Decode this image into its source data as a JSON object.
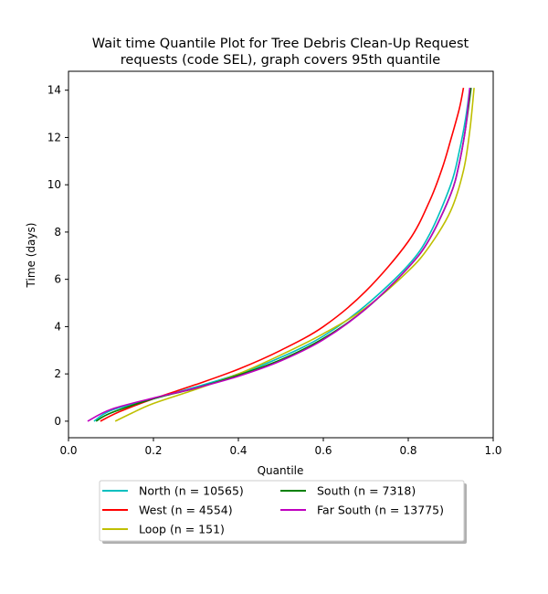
{
  "chart_data": {
    "type": "line",
    "title_line1": "Wait time Quantile Plot for Tree Debris Clean-Up Request",
    "title_line2": "requests (code SEL), graph covers 95th quantile",
    "xlabel": "Quantile",
    "ylabel": "Time (days)",
    "xlim": [
      0.0,
      1.0
    ],
    "ylim": [
      -0.7,
      14.8
    ],
    "x_ticks": [
      0.0,
      0.2,
      0.4,
      0.6,
      0.8,
      1.0
    ],
    "x_tick_labels": [
      "0.0",
      "0.2",
      "0.4",
      "0.6",
      "0.8",
      "1.0"
    ],
    "y_ticks": [
      0,
      2,
      4,
      6,
      8,
      10,
      12,
      14
    ],
    "y_tick_labels": [
      "0",
      "2",
      "4",
      "6",
      "8",
      "10",
      "12",
      "14"
    ],
    "grid": false,
    "legend_placement": "below plot, two columns",
    "series": [
      {
        "name": "North (n = 10565)",
        "color": "#00bfbf",
        "points": [
          [
            0.06,
            0
          ],
          [
            0.1,
            0.45
          ],
          [
            0.2,
            0.95
          ],
          [
            0.3,
            1.45
          ],
          [
            0.4,
            2.0
          ],
          [
            0.5,
            2.7
          ],
          [
            0.6,
            3.6
          ],
          [
            0.7,
            4.9
          ],
          [
            0.8,
            6.6
          ],
          [
            0.85,
            7.9
          ],
          [
            0.9,
            10.0
          ],
          [
            0.92,
            11.4
          ],
          [
            0.935,
            12.8
          ],
          [
            0.945,
            14.1
          ]
        ]
      },
      {
        "name": "West (n = 4554)",
        "color": "#ff0000",
        "points": [
          [
            0.075,
            0
          ],
          [
            0.12,
            0.4
          ],
          [
            0.2,
            0.95
          ],
          [
            0.3,
            1.55
          ],
          [
            0.4,
            2.2
          ],
          [
            0.5,
            3.0
          ],
          [
            0.6,
            4.0
          ],
          [
            0.7,
            5.5
          ],
          [
            0.8,
            7.6
          ],
          [
            0.85,
            9.3
          ],
          [
            0.88,
            10.7
          ],
          [
            0.9,
            11.9
          ],
          [
            0.92,
            13.2
          ],
          [
            0.93,
            14.1
          ]
        ]
      },
      {
        "name": "Loop (n = 151)",
        "color": "#bfbf00",
        "points": [
          [
            0.11,
            0
          ],
          [
            0.15,
            0.35
          ],
          [
            0.2,
            0.75
          ],
          [
            0.3,
            1.35
          ],
          [
            0.4,
            2.0
          ],
          [
            0.5,
            2.8
          ],
          [
            0.6,
            3.7
          ],
          [
            0.7,
            4.8
          ],
          [
            0.8,
            6.35
          ],
          [
            0.85,
            7.4
          ],
          [
            0.9,
            8.9
          ],
          [
            0.93,
            10.6
          ],
          [
            0.945,
            12.3
          ],
          [
            0.955,
            14.1
          ]
        ]
      },
      {
        "name": "South (n = 7318)",
        "color": "#008000",
        "points": [
          [
            0.065,
            0
          ],
          [
            0.1,
            0.35
          ],
          [
            0.2,
            0.95
          ],
          [
            0.3,
            1.4
          ],
          [
            0.4,
            1.95
          ],
          [
            0.5,
            2.6
          ],
          [
            0.6,
            3.5
          ],
          [
            0.7,
            4.75
          ],
          [
            0.8,
            6.5
          ],
          [
            0.85,
            7.7
          ],
          [
            0.9,
            9.6
          ],
          [
            0.92,
            10.9
          ],
          [
            0.935,
            12.4
          ],
          [
            0.948,
            14.1
          ]
        ]
      },
      {
        "name": "Far South (n = 13775)",
        "color": "#bf00bf",
        "points": [
          [
            0.045,
            0
          ],
          [
            0.1,
            0.5
          ],
          [
            0.2,
            0.98
          ],
          [
            0.3,
            1.4
          ],
          [
            0.4,
            1.9
          ],
          [
            0.5,
            2.55
          ],
          [
            0.6,
            3.45
          ],
          [
            0.7,
            4.75
          ],
          [
            0.8,
            6.5
          ],
          [
            0.85,
            7.7
          ],
          [
            0.9,
            9.6
          ],
          [
            0.92,
            10.9
          ],
          [
            0.935,
            12.4
          ],
          [
            0.945,
            14.1
          ]
        ]
      }
    ]
  }
}
